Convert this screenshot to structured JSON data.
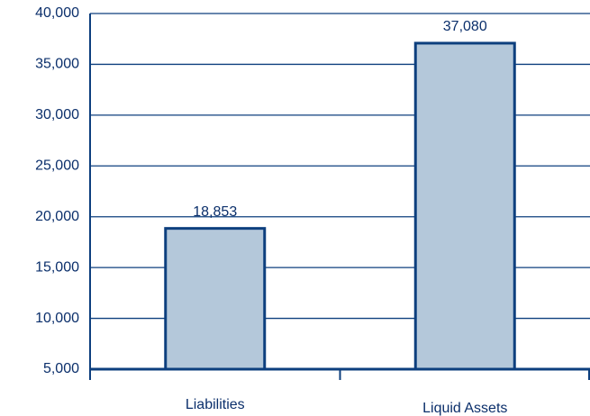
{
  "chart_data": {
    "type": "bar",
    "categories": [
      "Liabilities",
      "Liquid Assets"
    ],
    "values": [
      18853,
      37080
    ],
    "value_labels": [
      "18,853",
      "37,080"
    ],
    "color": "#b4c8da",
    "ylim": [
      5000,
      40000
    ],
    "yticks": [
      {
        "value": 5000,
        "label": "5,000"
      },
      {
        "value": 10000,
        "label": "10,000"
      },
      {
        "value": 15000,
        "label": "15,000"
      },
      {
        "value": 20000,
        "label": "20,000"
      },
      {
        "value": 25000,
        "label": "25,000"
      },
      {
        "value": 30000,
        "label": "30,000"
      },
      {
        "value": 35000,
        "label": "35,000"
      },
      {
        "value": 40000,
        "label": "40,000"
      }
    ],
    "grid": true
  }
}
